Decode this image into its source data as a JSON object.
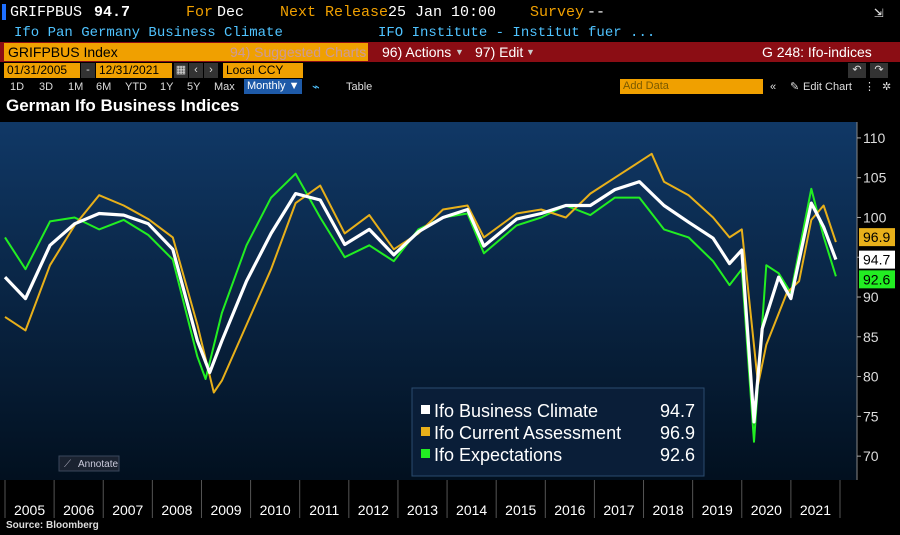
{
  "header": {
    "ticker": "GRIFPBUS",
    "last_value": "94.7",
    "for_label": "For",
    "for_value": "Dec",
    "next_release_label": "Next Release",
    "next_release_value": "25 Jan 10:00",
    "survey_label": "Survey",
    "survey_value": "--",
    "security_name": "Ifo Pan Germany Business Climate",
    "source_name": "IFO Institute - Institut fuer ..."
  },
  "toolbar": {
    "ticker_field": "GRIFPBUS Index",
    "suggested_charts": "94) Suggested Charts",
    "actions": "96) Actions",
    "edit": "97) Edit",
    "chart_id": "G 248: Ifo-indices",
    "start_date": "01/31/2005",
    "end_date": "12/31/2021",
    "currency": "Local CCY",
    "periods": [
      "1D",
      "3D",
      "1M",
      "6M",
      "YTD",
      "1Y",
      "5Y",
      "Max"
    ],
    "frequency": "Monthly",
    "table_label": "Table",
    "add_data_placeholder": "Add Data",
    "edit_chart": "Edit Chart",
    "annotate": "Annotate"
  },
  "colors": {
    "background": "#000000",
    "plot_top": "#103866",
    "plot_bottom": "#02101f",
    "climate": "#ffffff",
    "current": "#e8b01a",
    "expectations": "#22ee22",
    "toolbar_orange": "#f0a000",
    "toolbar_red": "#8b0d14"
  },
  "footer": {
    "source": "Source: Bloomberg"
  },
  "chart_data": {
    "type": "line",
    "title": "German Ifo Business Indices",
    "x_labels": [
      "2005",
      "2006",
      "2007",
      "2008",
      "2009",
      "2010",
      "2011",
      "2012",
      "2013",
      "2014",
      "2015",
      "2016",
      "2017",
      "2018",
      "2019",
      "2020",
      "2021"
    ],
    "xlim": [
      "2005-01",
      "2021-12"
    ],
    "ylim": [
      67,
      112
    ],
    "yticks": [
      70,
      75,
      80,
      85,
      90,
      95,
      100,
      105,
      110
    ],
    "grid": false,
    "legend_position": "bottom-right",
    "series": [
      {
        "name": "Ifo Business Climate",
        "last": "94.7",
        "color": "#ffffff",
        "points": [
          [
            "2005-01",
            92.5
          ],
          [
            "2005-06",
            89.8
          ],
          [
            "2005-12",
            96.5
          ],
          [
            "2006-06",
            99.2
          ],
          [
            "2006-12",
            100.5
          ],
          [
            "2007-06",
            100.3
          ],
          [
            "2007-12",
            99.2
          ],
          [
            "2008-06",
            96.0
          ],
          [
            "2008-12",
            84.5
          ],
          [
            "2009-03",
            80.5
          ],
          [
            "2009-06",
            84.5
          ],
          [
            "2009-12",
            92.0
          ],
          [
            "2010-06",
            98.0
          ],
          [
            "2010-12",
            103.0
          ],
          [
            "2011-06",
            102.2
          ],
          [
            "2011-12",
            96.6
          ],
          [
            "2012-06",
            98.5
          ],
          [
            "2012-12",
            95.3
          ],
          [
            "2013-06",
            98.2
          ],
          [
            "2013-12",
            100.0
          ],
          [
            "2014-06",
            101.0
          ],
          [
            "2014-10",
            96.4
          ],
          [
            "2015-06",
            99.8
          ],
          [
            "2015-12",
            100.5
          ],
          [
            "2016-06",
            101.5
          ],
          [
            "2016-12",
            101.5
          ],
          [
            "2017-06",
            103.5
          ],
          [
            "2017-12",
            104.5
          ],
          [
            "2018-06",
            101.5
          ],
          [
            "2018-12",
            99.4
          ],
          [
            "2019-06",
            97.4
          ],
          [
            "2019-10",
            94.2
          ],
          [
            "2020-01",
            95.9
          ],
          [
            "2020-04",
            74.3
          ],
          [
            "2020-06",
            86.0
          ],
          [
            "2020-10",
            92.5
          ],
          [
            "2021-01",
            89.8
          ],
          [
            "2021-06",
            101.8
          ],
          [
            "2021-09",
            98.8
          ],
          [
            "2021-12",
            94.7
          ]
        ]
      },
      {
        "name": "Ifo Current Assessment",
        "last": "96.9",
        "color": "#e8b01a",
        "points": [
          [
            "2005-01",
            87.5
          ],
          [
            "2005-06",
            85.8
          ],
          [
            "2005-12",
            94.0
          ],
          [
            "2006-06",
            99.0
          ],
          [
            "2006-12",
            102.8
          ],
          [
            "2007-06",
            101.5
          ],
          [
            "2007-12",
            99.8
          ],
          [
            "2008-06",
            97.5
          ],
          [
            "2008-12",
            86.5
          ],
          [
            "2009-04",
            78.0
          ],
          [
            "2009-06",
            79.5
          ],
          [
            "2009-12",
            86.5
          ],
          [
            "2010-06",
            93.5
          ],
          [
            "2010-12",
            101.8
          ],
          [
            "2011-06",
            104.0
          ],
          [
            "2011-12",
            98.0
          ],
          [
            "2012-06",
            100.3
          ],
          [
            "2012-12",
            96.0
          ],
          [
            "2013-06",
            98.0
          ],
          [
            "2013-12",
            101.0
          ],
          [
            "2014-06",
            101.5
          ],
          [
            "2014-10",
            97.5
          ],
          [
            "2015-06",
            100.5
          ],
          [
            "2015-12",
            101.0
          ],
          [
            "2016-06",
            100.0
          ],
          [
            "2016-12",
            103.0
          ],
          [
            "2017-06",
            105.0
          ],
          [
            "2017-12",
            107.0
          ],
          [
            "2018-03",
            108.0
          ],
          [
            "2018-06",
            104.5
          ],
          [
            "2018-12",
            102.8
          ],
          [
            "2019-06",
            100.0
          ],
          [
            "2019-10",
            97.5
          ],
          [
            "2020-01",
            98.5
          ],
          [
            "2020-05",
            79.0
          ],
          [
            "2020-07",
            84.0
          ],
          [
            "2020-12",
            90.5
          ],
          [
            "2021-03",
            92.0
          ],
          [
            "2021-06",
            99.7
          ],
          [
            "2021-09",
            101.5
          ],
          [
            "2021-12",
            96.9
          ]
        ]
      },
      {
        "name": "Ifo Expectations",
        "last": "92.6",
        "color": "#22ee22",
        "points": [
          [
            "2005-01",
            97.5
          ],
          [
            "2005-06",
            93.5
          ],
          [
            "2005-12",
            99.5
          ],
          [
            "2006-06",
            100.0
          ],
          [
            "2006-12",
            98.5
          ],
          [
            "2007-06",
            99.7
          ],
          [
            "2007-12",
            97.8
          ],
          [
            "2008-06",
            94.7
          ],
          [
            "2008-12",
            82.5
          ],
          [
            "2009-02",
            79.7
          ],
          [
            "2009-06",
            88.0
          ],
          [
            "2009-12",
            96.5
          ],
          [
            "2010-06",
            102.5
          ],
          [
            "2010-12",
            105.5
          ],
          [
            "2011-06",
            100.0
          ],
          [
            "2011-12",
            95.0
          ],
          [
            "2012-06",
            96.5
          ],
          [
            "2012-12",
            94.5
          ],
          [
            "2013-06",
            98.5
          ],
          [
            "2013-12",
            100.0
          ],
          [
            "2014-06",
            100.5
          ],
          [
            "2014-10",
            95.5
          ],
          [
            "2015-06",
            99.0
          ],
          [
            "2015-12",
            100.0
          ],
          [
            "2016-06",
            101.5
          ],
          [
            "2016-12",
            100.3
          ],
          [
            "2017-06",
            102.5
          ],
          [
            "2017-12",
            102.5
          ],
          [
            "2018-06",
            98.5
          ],
          [
            "2018-12",
            97.5
          ],
          [
            "2019-06",
            94.5
          ],
          [
            "2019-10",
            91.5
          ],
          [
            "2020-01",
            93.5
          ],
          [
            "2020-04",
            71.8
          ],
          [
            "2020-07",
            94.0
          ],
          [
            "2020-10",
            93.0
          ],
          [
            "2021-01",
            90.5
          ],
          [
            "2021-06",
            103.6
          ],
          [
            "2021-09",
            97.6
          ],
          [
            "2021-12",
            92.6
          ]
        ]
      }
    ]
  }
}
